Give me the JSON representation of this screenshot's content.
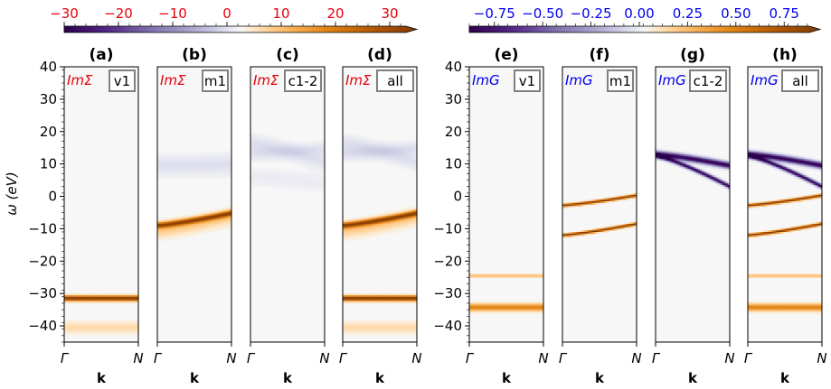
{
  "chart_data": {
    "type": "heatmap",
    "y_axis": {
      "label": "ω (eV)",
      "ylim": [
        -45,
        40
      ],
      "ticks": [
        40,
        30,
        20,
        10,
        0,
        -10,
        -20,
        -30,
        -40
      ],
      "tick_labels": [
        "40",
        "30",
        "20",
        "10",
        "0",
        "−10",
        "−20",
        "−30",
        "−40"
      ]
    },
    "x_axis": {
      "label": "k",
      "start_label": "Γ",
      "end_label": "N"
    },
    "colorbars": [
      {
        "name": "ImSigma",
        "quantity": "ImΣ",
        "color": "#e8000b",
        "range": [
          -30,
          33
        ],
        "tick_values": [
          -30,
          -20,
          -10,
          0,
          10,
          20,
          30
        ],
        "tick_labels": [
          "−30",
          "−20",
          "−10",
          "0",
          "10",
          "20",
          "30"
        ]
      },
      {
        "name": "ImG",
        "quantity": "ImG",
        "color": "#0000ee",
        "range": [
          -0.88,
          0.88
        ],
        "tick_values": [
          -0.75,
          -0.5,
          -0.25,
          0,
          0.25,
          0.5,
          0.75
        ],
        "tick_labels": [
          "−0.75",
          "−0.50",
          "−0.25",
          "0.00",
          "0.25",
          "0.50",
          "0.75"
        ]
      }
    ],
    "panels": [
      {
        "id": "a",
        "title": "(a)",
        "quantity": "ImΣ",
        "tag": "v1",
        "group": 0,
        "features": [
          {
            "kind": "flat",
            "w0": -31.5,
            "sigma": 0.55,
            "amp": 1.0
          },
          {
            "kind": "flat",
            "w0": -40.5,
            "sigma": 1.2,
            "amp": 0.12
          }
        ]
      },
      {
        "id": "b",
        "title": "(b)",
        "quantity": "ImΣ",
        "tag": "m1",
        "group": 0,
        "features": [
          {
            "kind": "curve",
            "w0": -9.0,
            "w1": -5.2,
            "sigma": 0.6,
            "amp": 0.85
          },
          {
            "kind": "curve",
            "w0": -10.5,
            "w1": -6.2,
            "sigma": 1.6,
            "amp": 0.18
          },
          {
            "kind": "curve",
            "w0": 9.5,
            "w1": 9.8,
            "sigma": 2.2,
            "amp": -0.08
          }
        ]
      },
      {
        "id": "c",
        "title": "(c)",
        "quantity": "ImΣ",
        "tag": "c1-2",
        "group": 0,
        "features": [
          {
            "kind": "curve",
            "w0": 16.5,
            "w1": 10.5,
            "sigma": 1.8,
            "amp": -0.08
          },
          {
            "kind": "curve",
            "w0": 13.0,
            "w1": 15.0,
            "sigma": 1.4,
            "amp": -0.07
          },
          {
            "kind": "curve",
            "w0": 6.0,
            "w1": 4.0,
            "sigma": 2.0,
            "amp": -0.04
          }
        ]
      },
      {
        "id": "d",
        "title": "(d)",
        "quantity": "ImΣ",
        "tag": "all",
        "group": 0,
        "features": [
          {
            "kind": "flat",
            "w0": -31.5,
            "sigma": 0.55,
            "amp": 1.0
          },
          {
            "kind": "flat",
            "w0": -40.5,
            "sigma": 1.2,
            "amp": 0.12
          },
          {
            "kind": "curve",
            "w0": -9.0,
            "w1": -5.2,
            "sigma": 0.6,
            "amp": 0.85
          },
          {
            "kind": "curve",
            "w0": -10.5,
            "w1": -6.2,
            "sigma": 1.6,
            "amp": 0.18
          },
          {
            "kind": "curve",
            "w0": 16.5,
            "w1": 10.5,
            "sigma": 1.8,
            "amp": -0.08
          },
          {
            "kind": "curve",
            "w0": 13.0,
            "w1": 15.0,
            "sigma": 1.4,
            "amp": -0.08
          }
        ]
      },
      {
        "id": "e",
        "title": "(e)",
        "quantity": "ImG",
        "tag": "v1",
        "group": 1,
        "features": [
          {
            "kind": "flat",
            "w0": -24.5,
            "sigma": 0.15,
            "amp": 0.75
          },
          {
            "kind": "flat",
            "w0": -34.3,
            "sigma": 0.75,
            "amp": 0.5
          }
        ]
      },
      {
        "id": "f",
        "title": "(f)",
        "quantity": "ImG",
        "tag": "m1",
        "group": 1,
        "features": [
          {
            "kind": "curve",
            "w0": -2.8,
            "w1": 0.3,
            "sigma": 0.3,
            "amp": 1.0
          },
          {
            "kind": "curve",
            "w0": -12.0,
            "w1": -8.5,
            "sigma": 0.3,
            "amp": 1.0
          }
        ]
      },
      {
        "id": "g",
        "title": "(g)",
        "quantity": "ImG",
        "tag": "c1-2",
        "group": 1,
        "features": [
          {
            "kind": "curve",
            "w0": 13.0,
            "w1": 9.5,
            "sigma": 0.65,
            "amp": -1.0
          },
          {
            "kind": "curve",
            "w0": 12.5,
            "w1": 3.0,
            "sigma": 0.45,
            "amp": -1.0
          }
        ]
      },
      {
        "id": "h",
        "title": "(h)",
        "quantity": "ImG",
        "tag": "all",
        "group": 1,
        "features": [
          {
            "kind": "curve",
            "w0": 13.0,
            "w1": 9.5,
            "sigma": 0.65,
            "amp": -1.0
          },
          {
            "kind": "curve",
            "w0": 12.5,
            "w1": 3.0,
            "sigma": 0.45,
            "amp": -1.0
          },
          {
            "kind": "curve",
            "w0": -2.8,
            "w1": 0.3,
            "sigma": 0.3,
            "amp": 1.0
          },
          {
            "kind": "curve",
            "w0": -12.0,
            "w1": -8.5,
            "sigma": 0.3,
            "amp": 1.0
          },
          {
            "kind": "flat",
            "w0": -24.5,
            "sigma": 0.15,
            "amp": 0.75
          },
          {
            "kind": "flat",
            "w0": -34.3,
            "sigma": 0.75,
            "amp": 0.5
          }
        ]
      }
    ]
  }
}
